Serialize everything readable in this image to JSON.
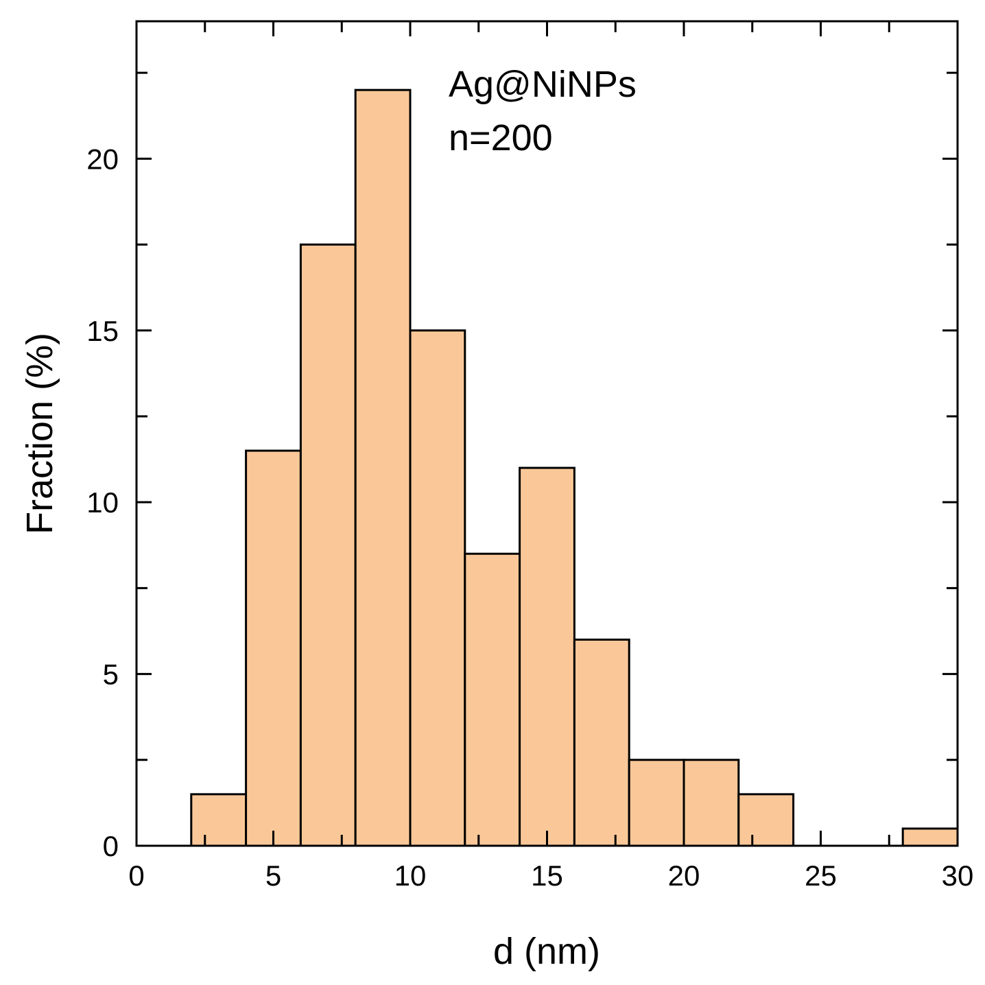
{
  "chart_data": {
    "type": "bar",
    "subtype": "histogram",
    "bins": [
      {
        "x0": 2,
        "x1": 4,
        "value": 1.5
      },
      {
        "x0": 4,
        "x1": 6,
        "value": 11.5
      },
      {
        "x0": 6,
        "x1": 8,
        "value": 17.5
      },
      {
        "x0": 8,
        "x1": 10,
        "value": 22
      },
      {
        "x0": 10,
        "x1": 12,
        "value": 15
      },
      {
        "x0": 12,
        "x1": 14,
        "value": 8.5
      },
      {
        "x0": 14,
        "x1": 16,
        "value": 11
      },
      {
        "x0": 16,
        "x1": 18,
        "value": 6
      },
      {
        "x0": 18,
        "x1": 20,
        "value": 2.5
      },
      {
        "x0": 20,
        "x1": 22,
        "value": 2.5
      },
      {
        "x0": 22,
        "x1": 24,
        "value": 1.5
      },
      {
        "x0": 24,
        "x1": 26,
        "value": 0
      },
      {
        "x0": 26,
        "x1": 28,
        "value": 0
      },
      {
        "x0": 28,
        "x1": 30,
        "value": 0.5
      }
    ],
    "xlabel": "d (nm)",
    "ylabel": "Fraction (%)",
    "xlim": [
      0,
      30
    ],
    "ylim": [
      0,
      24
    ],
    "xticks": [
      0,
      5,
      10,
      15,
      20,
      25,
      30
    ],
    "yticks": [
      0,
      5,
      10,
      15,
      20
    ],
    "y_minor_ticks": [
      2.5,
      7.5,
      12.5,
      17.5,
      22.5
    ],
    "x_minor_ticks": [
      2.5,
      7.5,
      12.5,
      17.5,
      22.5,
      27.5
    ],
    "annotations": [
      "Ag@NiNPs",
      "n=200"
    ],
    "bar_color": "#FAC898",
    "edge_color": "#000000",
    "grid": false
  }
}
